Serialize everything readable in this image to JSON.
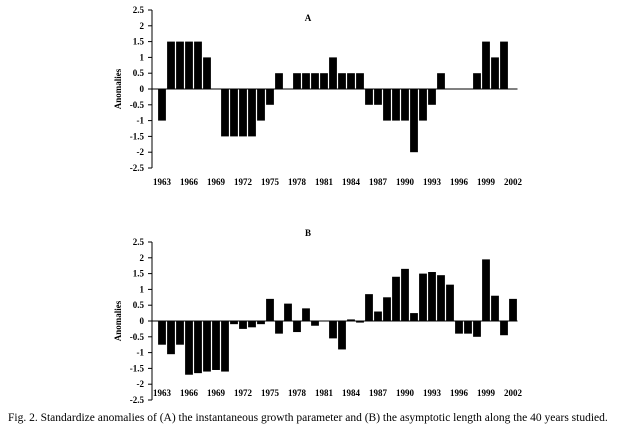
{
  "chart_data": [
    {
      "type": "bar",
      "title": "A",
      "ylabel": "Anomalies",
      "ylim": [
        -2.5,
        2.5
      ],
      "yticks": [
        "2.5",
        "2",
        "1.5",
        "1",
        "0.5",
        "0",
        "-0.5",
        "-1",
        "-1.5",
        "-2",
        "-2.5"
      ],
      "xtick_labels": [
        "1963",
        "1966",
        "1969",
        "1972",
        "1975",
        "1978",
        "1981",
        "1984",
        "1987",
        "1990",
        "1993",
        "1996",
        "1999",
        "2002"
      ],
      "categories": [
        1963,
        1964,
        1965,
        1966,
        1967,
        1968,
        1969,
        1970,
        1971,
        1972,
        1973,
        1974,
        1975,
        1976,
        1977,
        1978,
        1979,
        1980,
        1981,
        1982,
        1983,
        1984,
        1985,
        1986,
        1987,
        1988,
        1989,
        1990,
        1991,
        1992,
        1993,
        1994,
        1995,
        1996,
        1997,
        1998,
        1999,
        2000,
        2001,
        2002
      ],
      "values": [
        -1,
        1.5,
        1.5,
        1.5,
        1.5,
        1,
        0,
        -1.5,
        -1.5,
        -1.5,
        -1.5,
        -1,
        -0.5,
        0.5,
        0,
        0.5,
        0.5,
        0.5,
        0.5,
        1,
        0.5,
        0.5,
        0.5,
        -0.5,
        -0.5,
        -1,
        -1,
        -1,
        -2,
        -1,
        -0.5,
        0.5,
        0,
        0,
        0,
        0.5,
        1.5,
        1,
        1.5,
        0
      ]
    },
    {
      "type": "bar",
      "title": "B",
      "ylabel": "Anomalies",
      "ylim": [
        -2.5,
        2.5
      ],
      "yticks": [
        "2.5",
        "2",
        "1.5",
        "1",
        "0.5",
        "0",
        "-0.5",
        "-1",
        "-1.5",
        "-2",
        "-2.5"
      ],
      "xtick_labels": [
        "1963",
        "1966",
        "1969",
        "1972",
        "1975",
        "1978",
        "1981",
        "1984",
        "1987",
        "1990",
        "1993",
        "1996",
        "1999",
        "2002"
      ],
      "categories": [
        1963,
        1964,
        1965,
        1966,
        1967,
        1968,
        1969,
        1970,
        1971,
        1972,
        1973,
        1974,
        1975,
        1976,
        1977,
        1978,
        1979,
        1980,
        1981,
        1982,
        1983,
        1984,
        1985,
        1986,
        1987,
        1988,
        1989,
        1990,
        1991,
        1992,
        1993,
        1994,
        1995,
        1996,
        1997,
        1998,
        1999,
        2000,
        2001,
        2002
      ],
      "values": [
        -0.75,
        -1.05,
        -0.75,
        -1.7,
        -1.65,
        -1.6,
        -1.55,
        -1.6,
        -0.1,
        -0.25,
        -0.2,
        -0.1,
        0.7,
        -0.4,
        0.55,
        -0.35,
        0.4,
        -0.15,
        0,
        -0.55,
        -0.9,
        0.05,
        -0.05,
        0.85,
        0.3,
        0.75,
        1.4,
        1.65,
        0.25,
        1.5,
        1.55,
        1.45,
        1.15,
        -0.4,
        -0.4,
        -0.5,
        1.95,
        0.8,
        -0.45,
        0.7
      ]
    }
  ],
  "caption": "Fig. 2. Standardize anomalies of (A) the instantaneous growth parameter and (B) the asymptotic length along the 40 years studied."
}
